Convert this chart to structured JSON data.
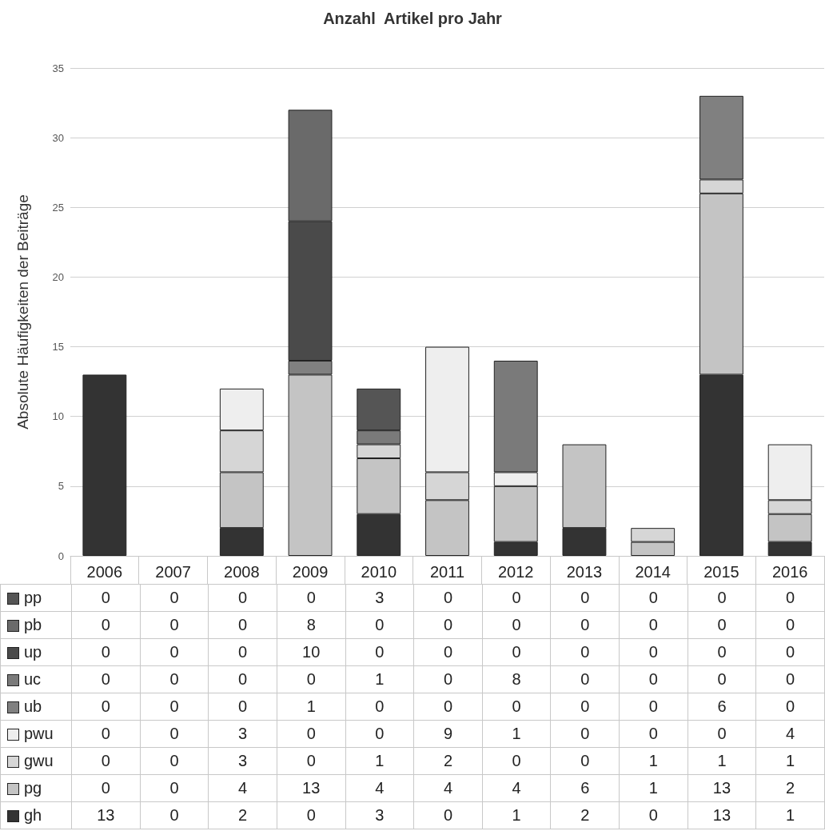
{
  "chart_data": {
    "type": "bar",
    "title": "Anzahl  Artikel pro Jahr",
    "ylabel": "Absolute Häufigkeiten der Beiträge",
    "categories": [
      "2006",
      "2007",
      "2008",
      "2009",
      "2010",
      "2011",
      "2012",
      "2013",
      "2014",
      "2015",
      "2016"
    ],
    "stacked": true,
    "data_labels": true,
    "grid": "y",
    "legend": "bottom",
    "ylim": [
      0,
      35
    ],
    "yticks": [
      0,
      5,
      10,
      15,
      20,
      25,
      30,
      35
    ],
    "series": [
      {
        "name": "gh",
        "color": "#333333",
        "values": [
          13,
          0,
          2,
          0,
          3,
          0,
          1,
          2,
          0,
          13,
          1
        ]
      },
      {
        "name": "pg",
        "color": "#c4c4c4",
        "values": [
          0,
          0,
          4,
          13,
          4,
          4,
          4,
          6,
          1,
          13,
          2
        ]
      },
      {
        "name": "gwu",
        "color": "#d6d6d6",
        "values": [
          0,
          0,
          3,
          0,
          1,
          2,
          0,
          0,
          1,
          1,
          1
        ]
      },
      {
        "name": "pwu",
        "color": "#eeeeee",
        "values": [
          0,
          0,
          3,
          0,
          0,
          9,
          1,
          0,
          0,
          0,
          4
        ]
      },
      {
        "name": "ub",
        "color": "#808080",
        "values": [
          0,
          0,
          0,
          1,
          0,
          0,
          0,
          0,
          0,
          6,
          0
        ]
      },
      {
        "name": "uc",
        "color": "#7a7a7a",
        "values": [
          0,
          0,
          0,
          0,
          1,
          0,
          8,
          0,
          0,
          0,
          0
        ]
      },
      {
        "name": "up",
        "color": "#4a4a4a",
        "values": [
          0,
          0,
          0,
          10,
          0,
          0,
          0,
          0,
          0,
          0,
          0
        ]
      },
      {
        "name": "pb",
        "color": "#6a6a6a",
        "values": [
          0,
          0,
          0,
          8,
          0,
          0,
          0,
          0,
          0,
          0,
          0
        ]
      },
      {
        "name": "pp",
        "color": "#555555",
        "values": [
          0,
          0,
          0,
          0,
          3,
          0,
          0,
          0,
          0,
          0,
          0
        ]
      }
    ]
  }
}
